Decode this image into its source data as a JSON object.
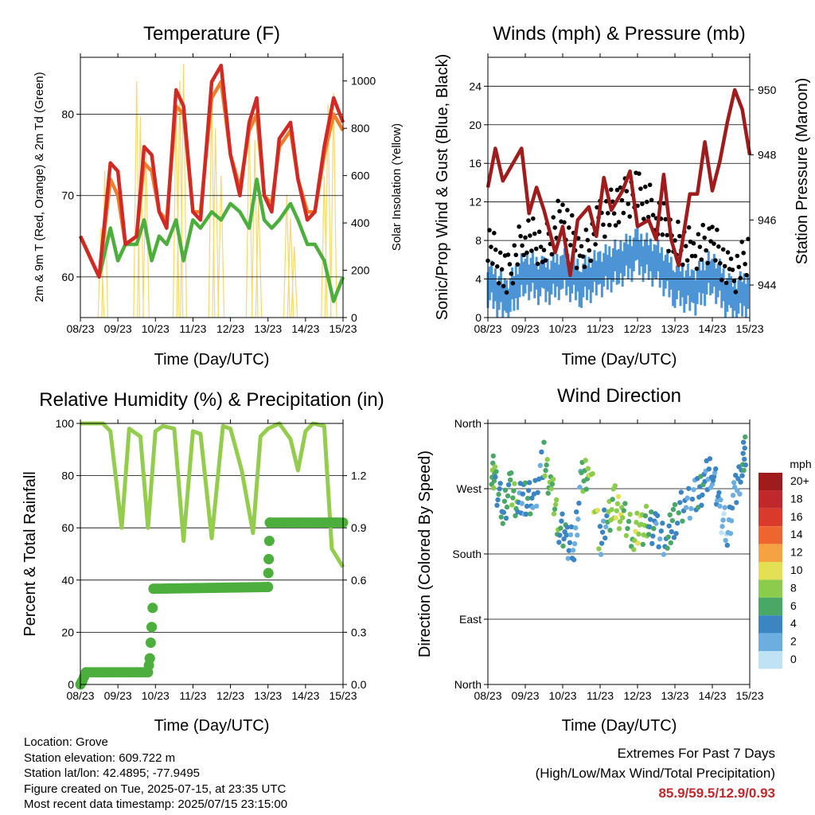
{
  "panels": {
    "temperature": {
      "title": "Temperature (F)",
      "ylabel_left": "2m & 9m T (Red, Orange) & 2m Td (Green)",
      "ylabel_right": "Solar Insolation (Yellow)",
      "xlabel": "Time (Day/UTC)"
    },
    "winds": {
      "title": "Winds (mph) & Pressure (mb)",
      "ylabel_left": "Sonic/Prop Wind & Gust (Blue, Black)",
      "ylabel_right": "Station Pressure (Maroon)",
      "xlabel": "Time (Day/UTC)"
    },
    "humidity": {
      "title": "Relative Humidity (%) & Precipitation (in)",
      "ylabel_left": "Percent & Total Rainfall",
      "xlabel": "Time (Day/UTC)"
    },
    "direction": {
      "title": "Wind Direction",
      "ylabel_left": "Direction (Colored By Speed)",
      "xlabel": "Time (Day/UTC)"
    }
  },
  "colorbar": {
    "unit": "mph",
    "labels": [
      "20+",
      "18",
      "16",
      "14",
      "12",
      "10",
      "8",
      "6",
      "4",
      "2",
      "0"
    ],
    "colors": [
      "#a01c1c",
      "#c0282c",
      "#d93a2b",
      "#ee6530",
      "#f5a342",
      "#e3e055",
      "#8ccc4c",
      "#4aa866",
      "#3a85c2",
      "#6baedf",
      "#bfe3f5"
    ]
  },
  "info": {
    "location": "Location: Grove",
    "elevation": "Station elevation: 609.722 m",
    "latlon": "Station lat/lon: 42.4895; -77.9495",
    "created": "Figure created on Tue, 2025-07-15, at 23:35 UTC",
    "recent": "Most recent data timestamp: 2025/07/15 23:15:00"
  },
  "extremes": {
    "line1": "Extremes For Past 7 Days",
    "line2": "(High/Low/Max Wind/Total Precipitation)",
    "values": "85.9/59.5/12.9/0.93"
  },
  "chart_data": [
    {
      "type": "line",
      "panel": "temperature",
      "x_ticks": [
        "08/23",
        "09/23",
        "10/23",
        "11/23",
        "12/23",
        "13/23",
        "14/23",
        "15/23"
      ],
      "xlim": [
        0,
        7
      ],
      "ylim_left": [
        55,
        87
      ],
      "yticks_left": [
        60,
        70,
        80
      ],
      "ylim_right": [
        0,
        1100
      ],
      "yticks_right": [
        0,
        200,
        400,
        600,
        800,
        1000
      ],
      "series": [
        {
          "name": "2m T (Red)",
          "color": "#d12a25",
          "x": [
            0,
            0.3,
            0.5,
            0.8,
            1.0,
            1.2,
            1.5,
            1.7,
            1.9,
            2.1,
            2.3,
            2.55,
            2.75,
            3.0,
            3.2,
            3.5,
            3.75,
            4.0,
            4.25,
            4.5,
            4.7,
            4.9,
            5.1,
            5.3,
            5.6,
            5.8,
            6.05,
            6.25,
            6.5,
            6.75,
            7.0
          ],
          "y": [
            65,
            62,
            60,
            74,
            73,
            64,
            65,
            76,
            75,
            68,
            66,
            83,
            81,
            68,
            67,
            84,
            86,
            75,
            70,
            79,
            82,
            70,
            68,
            77,
            79,
            72,
            67,
            68,
            76,
            82,
            79
          ]
        },
        {
          "name": "9m T (Orange)",
          "color": "#ef7d2c",
          "x": [
            0,
            0.3,
            0.5,
            0.8,
            1.0,
            1.2,
            1.5,
            1.7,
            1.9,
            2.1,
            2.3,
            2.55,
            2.75,
            3.0,
            3.2,
            3.5,
            3.75,
            4.0,
            4.25,
            4.5,
            4.7,
            4.9,
            5.1,
            5.3,
            5.6,
            5.8,
            6.05,
            6.25,
            6.5,
            6.75,
            7.0
          ],
          "y": [
            65,
            62,
            60,
            72,
            70,
            64,
            65,
            74,
            73,
            68,
            67,
            81,
            80,
            68,
            68,
            82,
            84,
            75,
            71,
            78,
            80,
            70,
            69,
            76,
            78,
            72,
            68,
            68,
            75,
            80,
            78
          ]
        },
        {
          "name": "2m Td (Green)",
          "color": "#4cae3c",
          "x": [
            0,
            0.3,
            0.5,
            0.8,
            1.0,
            1.2,
            1.5,
            1.7,
            1.9,
            2.1,
            2.3,
            2.55,
            2.75,
            3.0,
            3.2,
            3.5,
            3.75,
            4.0,
            4.25,
            4.5,
            4.7,
            4.9,
            5.1,
            5.3,
            5.6,
            5.8,
            6.05,
            6.25,
            6.5,
            6.75,
            7.0
          ],
          "y": [
            65,
            62,
            60,
            66,
            62,
            64,
            64,
            67,
            62,
            65,
            64,
            67,
            62,
            67,
            66,
            68,
            67,
            69,
            68,
            66,
            72,
            67,
            66,
            67,
            69,
            67,
            64,
            64,
            62,
            57,
            60
          ]
        },
        {
          "name": "Solar Insolation (Yellow)",
          "color": "#f5d96b",
          "axis": "right",
          "peaks_x": [
            0.55,
            0.65,
            1.5,
            1.6,
            1.75,
            2.55,
            2.65,
            2.75,
            3.5,
            3.6,
            3.75,
            4.5,
            4.65,
            4.75,
            5.5,
            5.6,
            5.7,
            6.5,
            6.6,
            6.75
          ],
          "peaks_y": [
            380,
            620,
            1000,
            850,
            700,
            900,
            1000,
            1070,
            950,
            800,
            600,
            850,
            750,
            500,
            520,
            420,
            300,
            600,
            900,
            950
          ]
        }
      ]
    },
    {
      "type": "line",
      "panel": "winds",
      "x_ticks": [
        "08/23",
        "09/23",
        "10/23",
        "11/23",
        "12/23",
        "13/23",
        "14/23",
        "15/23"
      ],
      "xlim": [
        0,
        7
      ],
      "ylim_left": [
        0,
        27
      ],
      "yticks_left": [
        0,
        4,
        8,
        12,
        16,
        20,
        24
      ],
      "ylim_right": [
        943,
        951
      ],
      "yticks_right": [
        944,
        946,
        948,
        950
      ],
      "series": [
        {
          "name": "Sonic/Prop Wind (Blue)",
          "color": "#4d94d6",
          "x": [
            0,
            0.5,
            1.0,
            1.5,
            2.0,
            2.5,
            3.0,
            3.5,
            4.0,
            4.5,
            5.0,
            5.5,
            6.0,
            6.5,
            7.0
          ],
          "y": [
            4,
            2,
            5,
            4,
            5,
            4,
            5,
            6,
            7,
            6,
            4,
            3,
            5,
            2,
            3
          ]
        },
        {
          "name": "Gust (Black)",
          "color": "#000000",
          "x": [
            0,
            0.5,
            1.0,
            1.5,
            2.0,
            2.5,
            3.0,
            3.5,
            4.0,
            4.5,
            5.0,
            5.5,
            6.0,
            6.5,
            7.0
          ],
          "y": [
            8,
            4,
            9,
            7,
            11,
            6,
            10,
            12,
            13,
            11,
            8,
            7,
            8,
            4,
            7
          ]
        },
        {
          "name": "Station Pressure (Maroon)",
          "color": "#a01c1c",
          "axis": "right",
          "x": [
            0,
            0.2,
            0.4,
            0.6,
            0.9,
            1.1,
            1.3,
            1.5,
            1.8,
            2.0,
            2.2,
            2.4,
            2.7,
            2.9,
            3.1,
            3.3,
            3.6,
            3.8,
            4.0,
            4.3,
            4.5,
            4.7,
            4.9,
            5.1,
            5.4,
            5.6,
            5.8,
            6.0,
            6.2,
            6.4,
            6.6,
            6.8,
            7.0
          ],
          "y": [
            947,
            948.2,
            947.2,
            947.6,
            948.2,
            946.2,
            947.0,
            946.3,
            945.0,
            945.8,
            944.3,
            946.0,
            946.4,
            945.5,
            947.3,
            946.3,
            946.9,
            947.5,
            945.8,
            946.0,
            945.4,
            947.4,
            945.4,
            944.6,
            946.8,
            946.8,
            948.4,
            946.9,
            947.8,
            949.0,
            950.0,
            949.4,
            948.0
          ]
        }
      ]
    },
    {
      "type": "line",
      "panel": "humidity",
      "x_ticks": [
        "08/23",
        "09/23",
        "10/23",
        "11/23",
        "12/23",
        "13/23",
        "14/23",
        "15/23"
      ],
      "xlim": [
        0,
        7
      ],
      "ylim_left": [
        0,
        100
      ],
      "yticks_left": [
        0,
        20,
        40,
        60,
        80,
        100
      ],
      "ylim_right": [
        0,
        1.5
      ],
      "yticks_right": [
        0.0,
        0.3,
        0.6,
        0.9,
        1.2
      ],
      "series": [
        {
          "name": "Relative Humidity",
          "color": "#94cc4e",
          "x": [
            0,
            0.6,
            0.8,
            1.1,
            1.3,
            1.6,
            1.8,
            2.0,
            2.2,
            2.5,
            2.75,
            3.0,
            3.2,
            3.5,
            3.8,
            4.0,
            4.3,
            4.6,
            4.8,
            5.0,
            5.3,
            5.6,
            5.8,
            6.0,
            6.2,
            6.5,
            6.7,
            7.0
          ],
          "y": [
            100,
            100,
            97,
            60,
            98,
            95,
            60,
            97,
            99,
            98,
            55,
            97,
            96,
            56,
            99,
            98,
            82,
            58,
            95,
            98,
            100,
            94,
            82,
            97,
            100,
            99,
            52,
            45
          ]
        },
        {
          "name": "Total Precipitation",
          "color": "#4cae3c",
          "axis": "right",
          "x": [
            0,
            0.05,
            0.15,
            1.8,
            1.85,
            1.9,
            1.95,
            5.0,
            5.02,
            5.05,
            7.0
          ],
          "y": [
            0.0,
            0.02,
            0.07,
            0.07,
            0.15,
            0.33,
            0.55,
            0.56,
            0.72,
            0.93,
            0.93
          ]
        }
      ]
    },
    {
      "type": "scatter",
      "panel": "direction",
      "x_ticks": [
        "08/23",
        "09/23",
        "10/23",
        "11/23",
        "12/23",
        "13/23",
        "14/23",
        "15/23"
      ],
      "xlim": [
        0,
        7
      ],
      "ylim": [
        0,
        360
      ],
      "yticks": [
        "North",
        "East",
        "South",
        "West",
        "North"
      ],
      "series": [
        {
          "name": "Wind Direction",
          "x": [
            0.1,
            0.2,
            0.4,
            0.6,
            0.8,
            1.0,
            1.2,
            1.5,
            1.7,
            1.9,
            2.1,
            2.3,
            2.5,
            2.7,
            3.0,
            3.2,
            3.4,
            3.6,
            3.9,
            4.1,
            4.3,
            4.5,
            4.8,
            5.0,
            5.3,
            5.6,
            5.8,
            6.0,
            6.2,
            6.4,
            6.6,
            6.8,
            6.9
          ],
          "y": [
            300,
            280,
            240,
            270,
            250,
            260,
            250,
            310,
            270,
            220,
            200,
            190,
            280,
            300,
            200,
            230,
            250,
            230,
            210,
            215,
            225,
            210,
            200,
            230,
            250,
            260,
            280,
            300,
            240,
            210,
            260,
            300,
            330
          ],
          "speed": [
            6,
            4,
            5,
            6,
            3,
            4,
            3,
            6,
            7,
            4,
            3,
            2,
            6,
            8,
            3,
            7,
            8,
            6,
            8,
            7,
            4,
            3,
            5,
            4,
            2,
            4,
            3,
            3,
            1,
            2,
            3,
            4,
            2
          ]
        }
      ]
    }
  ]
}
